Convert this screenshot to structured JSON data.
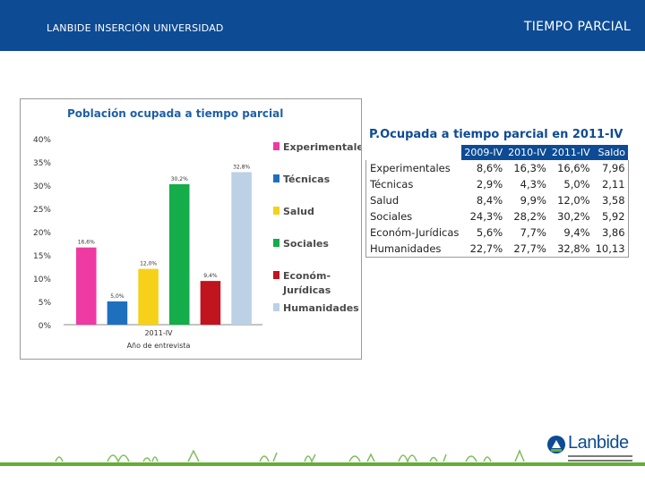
{
  "header": {
    "left_title": "LANBIDE INSERCIÓN UNIVERSIDAD",
    "right_title": "TIEMPO PARCIAL",
    "color": "#0d4b94"
  },
  "chart_data": {
    "type": "bar",
    "title": "Población ocupada a tiempo parcial",
    "categories": [
      "2011-IV"
    ],
    "xlabel": "Año de entrevista",
    "ylabel": "",
    "ylim": [
      0,
      40
    ],
    "yticks": [
      "0%",
      "5%",
      "10%",
      "15%",
      "20%",
      "25%",
      "30%",
      "35%",
      "40%"
    ],
    "series": [
      {
        "name": "Experimentales",
        "values": [
          16.6
        ],
        "label": "16,6%",
        "color": "#ee3aa2"
      },
      {
        "name": "Técnicas",
        "values": [
          5.0
        ],
        "label": "5,0%",
        "color": "#1f6fbf"
      },
      {
        "name": "Salud",
        "values": [
          12.0
        ],
        "label": "12,0%",
        "color": "#f5d219"
      },
      {
        "name": "Sociales",
        "values": [
          30.2
        ],
        "label": "30,2%",
        "color": "#14ad4a"
      },
      {
        "name": "Económ-Jurídicas",
        "values": [
          9.4
        ],
        "label": "9,4%",
        "color": "#c0141e"
      },
      {
        "name": "Humanidades",
        "values": [
          32.8
        ],
        "label": "32,8%",
        "color": "#bcd0e6"
      }
    ],
    "legend_lines": {
      "Económ-Jurídicas": [
        "Económ-",
        "Jurídicas"
      ]
    },
    "legend_position": "right",
    "grid": false
  },
  "table": {
    "title": "P.Ocupada a tiempo parcial en 2011-IV",
    "headers": [
      "2009-IV",
      "2010-IV",
      "2011-IV",
      "Saldo"
    ],
    "rows": [
      {
        "category": "Experimentales",
        "values": [
          "8,6%",
          "16,3%",
          "16,6%",
          "7,96"
        ]
      },
      {
        "category": "Técnicas",
        "values": [
          "2,9%",
          "4,3%",
          "5,0%",
          "2,11"
        ]
      },
      {
        "category": "Salud",
        "values": [
          "8,4%",
          "9,9%",
          "12,0%",
          "3,58"
        ]
      },
      {
        "category": "Sociales",
        "values": [
          "24,3%",
          "28,2%",
          "30,2%",
          "5,92"
        ]
      },
      {
        "category": "Económ-Jurídicas",
        "values": [
          "5,6%",
          "7,7%",
          "9,4%",
          "3,86"
        ]
      },
      {
        "category": "Humanidades",
        "values": [
          "22,7%",
          "27,7%",
          "32,8%",
          "10,13"
        ]
      }
    ]
  },
  "logo": {
    "name": "Lanbide",
    "color": "#0d4b94",
    "accent": "#62ad35"
  }
}
